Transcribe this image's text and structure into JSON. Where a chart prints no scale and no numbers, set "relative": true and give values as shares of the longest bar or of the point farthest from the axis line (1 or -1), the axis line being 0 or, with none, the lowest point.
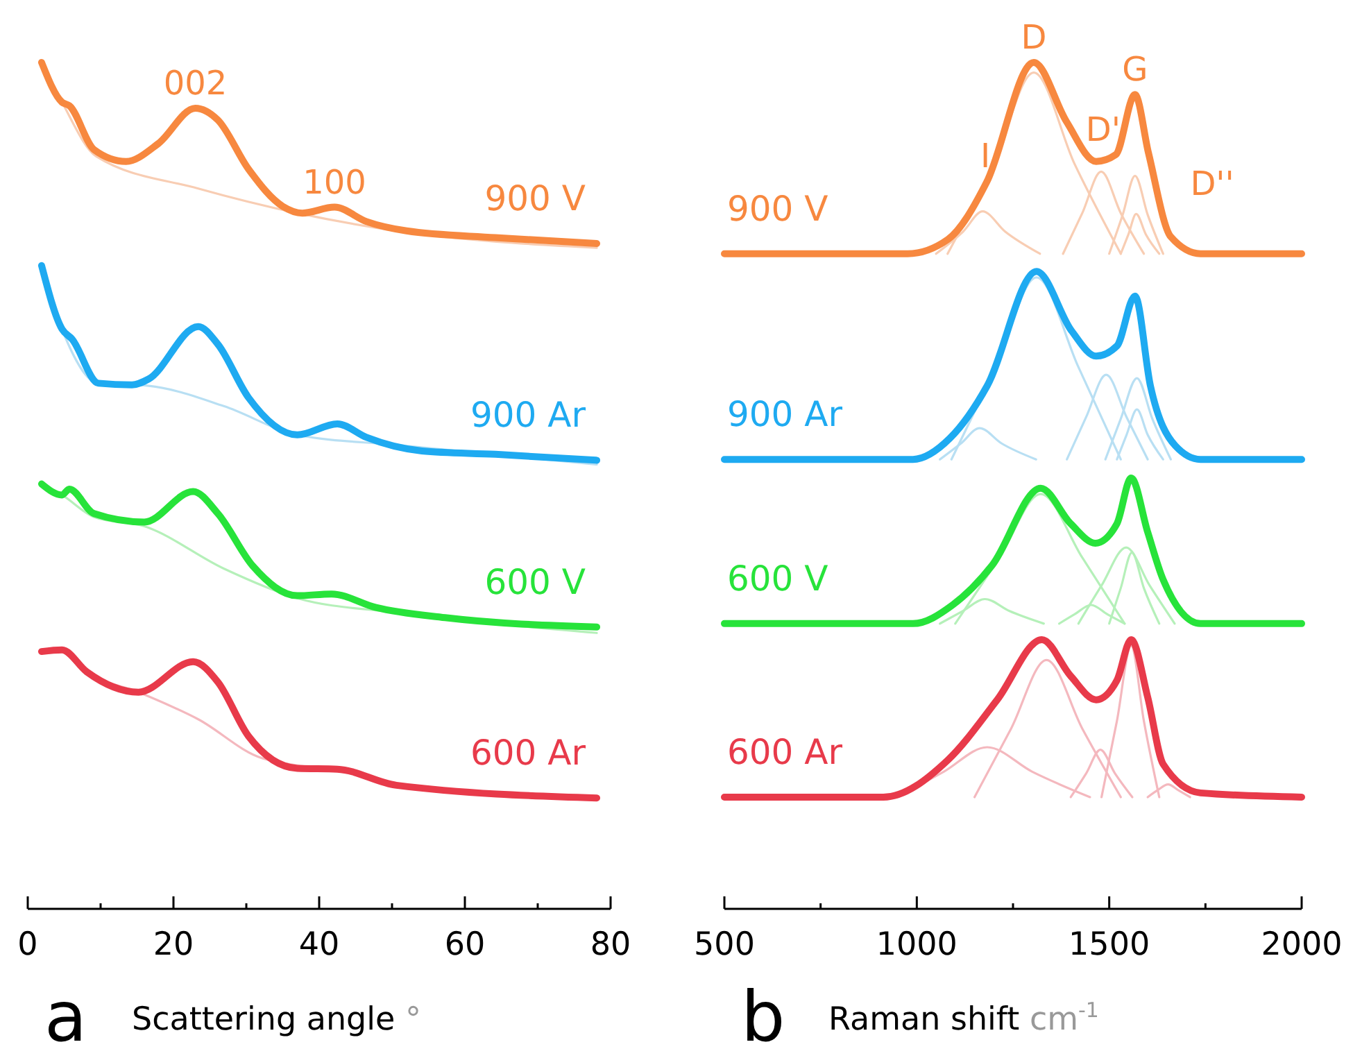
{
  "chart_data": [
    {
      "type": "line",
      "title": "a",
      "xlabel": "Scattering angle °",
      "relative": true,
      "tick_labels": "x",
      "xlim": [
        0,
        80
      ],
      "xticks": [
        0,
        {
          "value": 10,
          "label": null
        },
        20,
        {
          "value": 30,
          "label": null
        },
        40,
        {
          "value": 50,
          "label": null
        },
        60,
        {
          "value": 70,
          "label": null
        },
        80
      ],
      "series": [
        {
          "color": "#f8cdb3",
          "x": [
            1.9,
            4.7,
            9.4,
            23.4,
            37.0,
            50.6,
            78.1
          ],
          "values": [
            1.0,
            0.953,
            0.889,
            0.851,
            0.822,
            0.801,
            0.781
          ]
        },
        {
          "color": "#b8dff3",
          "x": [
            1.9,
            4.7,
            9.7,
            16.6,
            26.9,
            37.0,
            50.6,
            78.1
          ],
          "values": [
            0.76,
            0.685,
            0.621,
            0.618,
            0.594,
            0.56,
            0.548,
            0.525
          ]
        },
        {
          "color": "#b5f0b9",
          "x": [
            1.9,
            4.7,
            9.1,
            16.0,
            26.9,
            37.0,
            50.6,
            78.1
          ],
          "values": [
            0.502,
            0.489,
            0.463,
            0.452,
            0.402,
            0.367,
            0.35,
            0.326
          ]
        },
        {
          "color": "#f4b8be",
          "x": [
            1.9,
            4.7,
            8.1,
            15.2,
            23.4,
            32.2,
            42.5
          ],
          "values": [
            0.304,
            0.306,
            0.28,
            0.256,
            0.224,
            0.178,
            0.165
          ]
        },
        {
          "name": "900 V",
          "color": "#f7883f",
          "x": [
            1.9,
            4.7,
            5.7,
            9.1,
            13.5,
            17.9,
            23.0,
            26.1,
            30.3,
            35.0,
            37.7,
            42.1,
            46.5,
            52.0,
            64.2,
            78.1
          ],
          "values": [
            1.0,
            0.953,
            0.949,
            0.897,
            0.883,
            0.904,
            0.946,
            0.932,
            0.874,
            0.83,
            0.822,
            0.829,
            0.812,
            0.801,
            0.793,
            0.786
          ]
        },
        {
          "name": "900 Ar",
          "color": "#1eaaf1",
          "x": [
            1.9,
            4.7,
            6.1,
            9.7,
            14.3,
            16.6,
            23.4,
            26.1,
            30.3,
            37.0,
            42.5,
            46.5,
            54.1,
            64.2,
            78.1
          ],
          "values": [
            0.76,
            0.685,
            0.673,
            0.621,
            0.619,
            0.626,
            0.688,
            0.667,
            0.604,
            0.56,
            0.573,
            0.557,
            0.541,
            0.537,
            0.53
          ]
        },
        {
          "name": "600 V",
          "color": "#27e33a",
          "x": [
            1.9,
            4.7,
            5.7,
            9.1,
            16.0,
            22.7,
            26.1,
            30.9,
            37.0,
            41.7,
            47.8,
            57.3,
            78.1
          ],
          "values": [
            0.502,
            0.489,
            0.496,
            0.467,
            0.457,
            0.493,
            0.467,
            0.405,
            0.37,
            0.372,
            0.356,
            0.344,
            0.333
          ]
        },
        {
          "name": "600 Ar",
          "color": "#e83a4a",
          "x": [
            1.9,
            4.7,
            8.1,
            15.2,
            22.7,
            26.1,
            30.3,
            37.0,
            42.5,
            50.6,
            78.1
          ],
          "values": [
            0.304,
            0.306,
            0.28,
            0.256,
            0.292,
            0.268,
            0.204,
            0.166,
            0.165,
            0.146,
            0.131
          ]
        }
      ],
      "annotations": [
        {
          "text": "002",
          "x": 23,
          "y": 0.946
        },
        {
          "text": "100",
          "x": 42.1,
          "y": 0.829
        }
      ]
    },
    {
      "type": "line",
      "title": "b",
      "xlabel": "Raman shift cm$^{-1}$",
      "relative": true,
      "tick_labels": "x",
      "xlim": [
        500,
        2000
      ],
      "xticks": [
        500,
        {
          "value": 750,
          "label": null
        },
        1000,
        {
          "value": 1250,
          "label": null
        },
        1500,
        {
          "value": 1750,
          "label": null
        },
        2000
      ],
      "series": [
        {
          "color": "#f8cdb3",
          "x": [
            1050,
            1120,
            1171,
            1230,
            1320
          ],
          "values": [
            0.774,
            0.8,
            0.824,
            0.8,
            0.774
          ]
        },
        {
          "color": "#f8cdb3",
          "x": [
            1080,
            1200,
            1304,
            1410,
            1530
          ],
          "values": [
            0.774,
            0.88,
            0.988,
            0.88,
            0.774
          ]
        },
        {
          "color": "#f8cdb3",
          "x": [
            1380,
            1430,
            1479,
            1530,
            1590
          ],
          "values": [
            0.774,
            0.822,
            0.871,
            0.822,
            0.774
          ]
        },
        {
          "color": "#f8cdb3",
          "x": [
            1500,
            1535,
            1567,
            1600,
            1640
          ],
          "values": [
            0.774,
            0.82,
            0.866,
            0.82,
            0.774
          ]
        },
        {
          "color": "#f8cdb3",
          "x": [
            1530,
            1550,
            1570,
            1595,
            1630
          ],
          "values": [
            0.774,
            0.797,
            0.821,
            0.797,
            0.774
          ]
        },
        {
          "color": "#b8dff3",
          "x": [
            1060,
            1115,
            1163,
            1220,
            1310
          ],
          "values": [
            0.531,
            0.55,
            0.568,
            0.55,
            0.531
          ]
        },
        {
          "color": "#b8dff3",
          "x": [
            1090,
            1205,
            1311,
            1420,
            1530
          ],
          "values": [
            0.531,
            0.64,
            0.746,
            0.64,
            0.531
          ]
        },
        {
          "color": "#b8dff3",
          "x": [
            1390,
            1440,
            1492,
            1545,
            1600
          ],
          "values": [
            0.531,
            0.581,
            0.631,
            0.581,
            0.531
          ]
        },
        {
          "color": "#b8dff3",
          "x": [
            1490,
            1530,
            1572,
            1612,
            1660
          ],
          "values": [
            0.531,
            0.579,
            0.627,
            0.579,
            0.531
          ]
        },
        {
          "color": "#b8dff3",
          "x": [
            1520,
            1545,
            1572,
            1600,
            1640
          ],
          "values": [
            0.531,
            0.56,
            0.59,
            0.56,
            0.531
          ]
        },
        {
          "color": "#b5f0b9",
          "x": [
            1060,
            1120,
            1177,
            1240,
            1330
          ],
          "values": [
            0.337,
            0.352,
            0.366,
            0.352,
            0.337
          ]
        },
        {
          "color": "#b5f0b9",
          "x": [
            1100,
            1215,
            1322,
            1430,
            1540
          ],
          "values": [
            0.337,
            0.415,
            0.49,
            0.415,
            0.337
          ]
        },
        {
          "color": "#b5f0b9",
          "x": [
            1370,
            1410,
            1453,
            1495,
            1540
          ],
          "values": [
            0.337,
            0.348,
            0.359,
            0.348,
            0.337
          ]
        },
        {
          "color": "#b5f0b9",
          "x": [
            1420,
            1480,
            1544,
            1605,
            1670
          ],
          "values": [
            0.337,
            0.382,
            0.427,
            0.382,
            0.337
          ]
        },
        {
          "color": "#b5f0b9",
          "x": [
            1500,
            1530,
            1559,
            1590,
            1630
          ],
          "values": [
            0.337,
            0.379,
            0.421,
            0.379,
            0.337
          ]
        },
        {
          "color": "#f4b8be",
          "x": [
            950,
            1070,
            1183,
            1300,
            1450
          ],
          "values": [
            0.132,
            0.162,
            0.191,
            0.162,
            0.132
          ]
        },
        {
          "color": "#f4b8be",
          "x": [
            1150,
            1245,
            1337,
            1430,
            1530
          ],
          "values": [
            0.132,
            0.213,
            0.294,
            0.213,
            0.132
          ]
        },
        {
          "color": "#f4b8be",
          "x": [
            1400,
            1440,
            1477,
            1515,
            1560
          ],
          "values": [
            0.132,
            0.16,
            0.188,
            0.16,
            0.132
          ]
        },
        {
          "color": "#f4b8be",
          "x": [
            1480,
            1520,
            1557,
            1590,
            1630
          ],
          "values": [
            0.132,
            0.222,
            0.311,
            0.222,
            0.132
          ]
        },
        {
          "color": "#f4b8be",
          "x": [
            1600,
            1625,
            1653,
            1680,
            1710
          ],
          "values": [
            0.132,
            0.14,
            0.147,
            0.14,
            0.132
          ]
        },
        {
          "name": "900 V",
          "color": "#f7883f",
          "x": [
            500,
            976,
            1081,
            1182,
            1304,
            1389,
            1466,
            1517,
            1567,
            1602,
            1660,
            1737,
            2000
          ],
          "values": [
            0.774,
            0.774,
            0.791,
            0.859,
            1.0,
            0.93,
            0.883,
            0.891,
            0.962,
            0.893,
            0.794,
            0.774,
            0.774
          ]
        },
        {
          "name": "900 Ar",
          "color": "#1eaaf1",
          "x": [
            500,
            990,
            1086,
            1183,
            1311,
            1402,
            1466,
            1520,
            1567,
            1607,
            1672,
            1737,
            2000
          ],
          "values": [
            0.531,
            0.531,
            0.556,
            0.618,
            0.753,
            0.683,
            0.653,
            0.665,
            0.724,
            0.618,
            0.547,
            0.531,
            0.531
          ]
        },
        {
          "name": "600 V",
          "color": "#27e33a",
          "x": [
            500,
            990,
            1093,
            1196,
            1322,
            1400,
            1464,
            1520,
            1557,
            1600,
            1640,
            1737,
            2000
          ],
          "values": [
            0.337,
            0.337,
            0.359,
            0.406,
            0.497,
            0.455,
            0.432,
            0.455,
            0.509,
            0.445,
            0.389,
            0.337,
            0.337
          ]
        },
        {
          "name": "600 Ar",
          "color": "#e83a4a",
          "x": [
            500,
            913,
            1081,
            1209,
            1325,
            1400,
            1466,
            1520,
            1557,
            1600,
            1640,
            1737,
            2000
          ],
          "values": [
            0.132,
            0.132,
            0.176,
            0.247,
            0.318,
            0.275,
            0.247,
            0.27,
            0.318,
            0.25,
            0.171,
            0.137,
            0.132
          ]
        }
      ],
      "annotations": [
        {
          "text": "I",
          "x": 1178,
          "y": 0.86
        },
        {
          "text": "D",
          "x": 1304,
          "y": 1.0
        },
        {
          "text": "D'",
          "x": 1484,
          "y": 0.891
        },
        {
          "text": "G",
          "x": 1567,
          "y": 0.962
        },
        {
          "text": "D''",
          "x": 1660,
          "y": 0.794
        }
      ]
    }
  ]
}
